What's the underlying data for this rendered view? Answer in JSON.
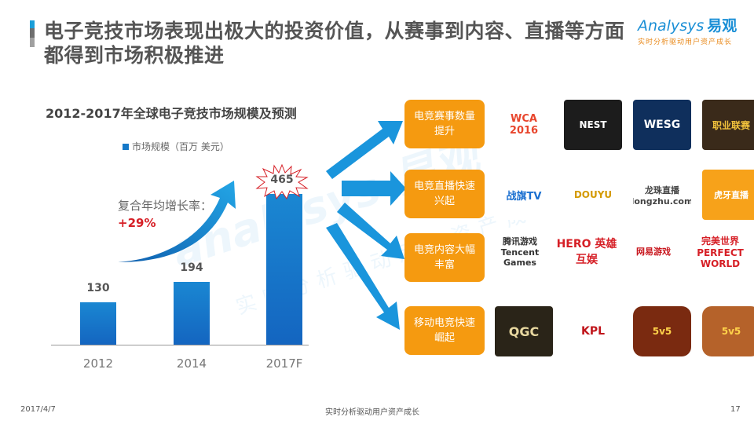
{
  "header": {
    "title": "电子竞技市场表现出极大的投资价值，从赛事到内容、直播等方面都得到市场积极推进",
    "logo_main": "nalysys",
    "logo_prefix": "A",
    "logo_cn": "易观",
    "logo_tagline": "实时分析驱动用户资产成长"
  },
  "chart_data": {
    "type": "bar",
    "title": "2012-2017年全球电子竞技市场规模及预测",
    "legend": [
      "市场规模（百万 美元）"
    ],
    "categories": [
      "2012",
      "2014",
      "2017F"
    ],
    "series": [
      {
        "name": "市场规模（百万 美元）",
        "values": [
          130,
          194,
          465
        ]
      }
    ],
    "annotation": {
      "label": "复合年均增长率：",
      "value": "+29%"
    },
    "highlight": {
      "category": "2017F",
      "shape": "starburst"
    },
    "xlabel": "",
    "ylabel": "",
    "ylim": [
      0,
      500
    ],
    "grid": false,
    "color": "#1679c8"
  },
  "drivers": [
    {
      "label": "电竞赛事数量提升",
      "logos": [
        "WCA 2016",
        "NEST",
        "WESG",
        "职业联赛"
      ]
    },
    {
      "label": "电竞直播快速兴起",
      "logos": [
        "战旗TV",
        "DOUYU",
        "龙珠直播 longzhu.com",
        "虎牙直播"
      ]
    },
    {
      "label": "电竞内容大幅丰富",
      "logos": [
        "腾讯游戏 Tencent Games",
        "HERO 英雄互娱",
        "网易游戏",
        "完美世界 PERFECT WORLD"
      ]
    },
    {
      "label": "移动电竞快速崛起",
      "logos": [
        "QGC",
        "KPL",
        "5v5",
        "5v5"
      ]
    }
  ],
  "footer": {
    "date": "2017/4/7",
    "slogan": "实时分析驱动用户资产成长",
    "page": "17"
  },
  "colors": {
    "accent_blue": "#1a8fd6",
    "bar_blue": "#1679c8",
    "orange": "#f59a10",
    "red": "#d61f26"
  }
}
